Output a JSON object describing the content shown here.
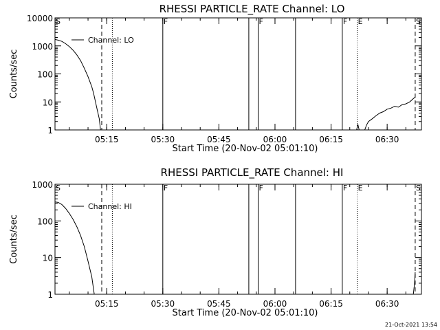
{
  "chart_data": [
    {
      "type": "line",
      "title": "RHESSI PARTICLE_RATE Channel: LO",
      "xlabel": "Start Time (20-Nov-02 05:01:10)",
      "ylabel": "Counts/sec",
      "y_scale": "log",
      "ylim": [
        1,
        10000
      ],
      "yticks": [
        "1",
        "10",
        "100",
        "1000",
        "10000"
      ],
      "xlim": [
        "05:01:10",
        "06:39:10"
      ],
      "xticks": [
        "05:15",
        "05:30",
        "05:45",
        "06:00",
        "06:15",
        "06:30"
      ],
      "legend": {
        "position": "top-left",
        "label": "Channel: LO"
      },
      "markers": [
        {
          "time": "05:01:10",
          "style": "solid",
          "label": "S"
        },
        {
          "time": "05:13:40",
          "style": "dashed",
          "label": ""
        },
        {
          "time": "05:16:30",
          "style": "dotted",
          "label": ""
        },
        {
          "time": "05:30:00",
          "style": "solid",
          "label": "F"
        },
        {
          "time": "05:53:00",
          "style": "solid",
          "label": ""
        },
        {
          "time": "05:55:30",
          "style": "solid",
          "label": "F"
        },
        {
          "time": "06:05:30",
          "style": "solid",
          "label": ""
        },
        {
          "time": "06:18:00",
          "style": "solid",
          "label": "F"
        },
        {
          "time": "06:22:00",
          "style": "dotted",
          "label": "E"
        },
        {
          "time": "06:37:30",
          "style": "dashed",
          "label": "S"
        }
      ],
      "series": [
        {
          "segments": [
            [
              [
                "05:01:10",
                1700
              ],
              [
                "05:02:00",
                1600
              ],
              [
                "05:03:00",
                1450
              ],
              [
                "05:04:00",
                1200
              ],
              [
                "05:05:00",
                950
              ],
              [
                "05:06:00",
                700
              ],
              [
                "05:07:00",
                480
              ],
              [
                "05:08:00",
                300
              ],
              [
                "05:09:00",
                160
              ],
              [
                "05:10:00",
                80
              ],
              [
                "05:11:00",
                35
              ],
              [
                "05:11:30",
                20
              ],
              [
                "05:12:00",
                10
              ],
              [
                "05:12:30",
                5
              ],
              [
                "05:13:00",
                2.5
              ],
              [
                "05:13:20",
                1
              ]
            ],
            [
              [
                "06:21:50",
                1
              ],
              [
                "06:22:10",
                1.6
              ],
              [
                "06:22:30",
                1
              ]
            ],
            [
              [
                "06:24:00",
                1
              ],
              [
                "06:24:30",
                1.5
              ],
              [
                "06:25:00",
                2
              ],
              [
                "06:26:00",
                2.5
              ],
              [
                "06:27:00",
                3.2
              ],
              [
                "06:28:00",
                4
              ],
              [
                "06:29:00",
                4.5
              ],
              [
                "06:30:00",
                5.5
              ],
              [
                "06:31:00",
                6
              ],
              [
                "06:32:00",
                7
              ],
              [
                "06:33:00",
                6.5
              ],
              [
                "06:34:00",
                8
              ],
              [
                "06:35:00",
                8.5
              ],
              [
                "06:36:00",
                10
              ],
              [
                "06:37:30",
                15
              ]
            ]
          ]
        }
      ]
    },
    {
      "type": "line",
      "title": "RHESSI PARTICLE_RATE Channel: HI",
      "xlabel": "Start Time (20-Nov-02 05:01:10)",
      "ylabel": "Counts/sec",
      "y_scale": "log",
      "ylim": [
        1,
        1000
      ],
      "yticks": [
        "1",
        "10",
        "100",
        "1000"
      ],
      "xlim": [
        "05:01:10",
        "06:39:10"
      ],
      "xticks": [
        "05:15",
        "05:30",
        "05:45",
        "06:00",
        "06:15",
        "06:30"
      ],
      "legend": {
        "position": "top-left",
        "label": "Channel: HI"
      },
      "markers": [
        {
          "time": "05:01:10",
          "style": "solid",
          "label": "S"
        },
        {
          "time": "05:13:40",
          "style": "dashed",
          "label": ""
        },
        {
          "time": "05:16:30",
          "style": "dotted",
          "label": ""
        },
        {
          "time": "05:30:00",
          "style": "solid",
          "label": "F"
        },
        {
          "time": "05:53:00",
          "style": "solid",
          "label": ""
        },
        {
          "time": "05:55:30",
          "style": "solid",
          "label": "F"
        },
        {
          "time": "06:05:30",
          "style": "solid",
          "label": ""
        },
        {
          "time": "06:18:00",
          "style": "solid",
          "label": "F"
        },
        {
          "time": "06:22:00",
          "style": "dotted",
          "label": "E"
        },
        {
          "time": "06:37:30",
          "style": "dashed",
          "label": "S"
        }
      ],
      "series": [
        {
          "segments": [
            [
              [
                "05:01:10",
                330
              ],
              [
                "05:02:00",
                320
              ],
              [
                "05:03:00",
                280
              ],
              [
                "05:04:00",
                220
              ],
              [
                "05:05:00",
                160
              ],
              [
                "05:06:00",
                110
              ],
              [
                "05:07:00",
                70
              ],
              [
                "05:08:00",
                40
              ],
              [
                "05:09:00",
                20
              ],
              [
                "05:10:00",
                8
              ],
              [
                "05:11:00",
                3
              ],
              [
                "05:11:40",
                1
              ]
            ],
            [
              [
                "06:37:00",
                1
              ],
              [
                "06:37:20",
                2
              ],
              [
                "06:37:30",
                4
              ]
            ]
          ]
        }
      ]
    }
  ],
  "timestamp": "21-Oct-2021 13:54"
}
